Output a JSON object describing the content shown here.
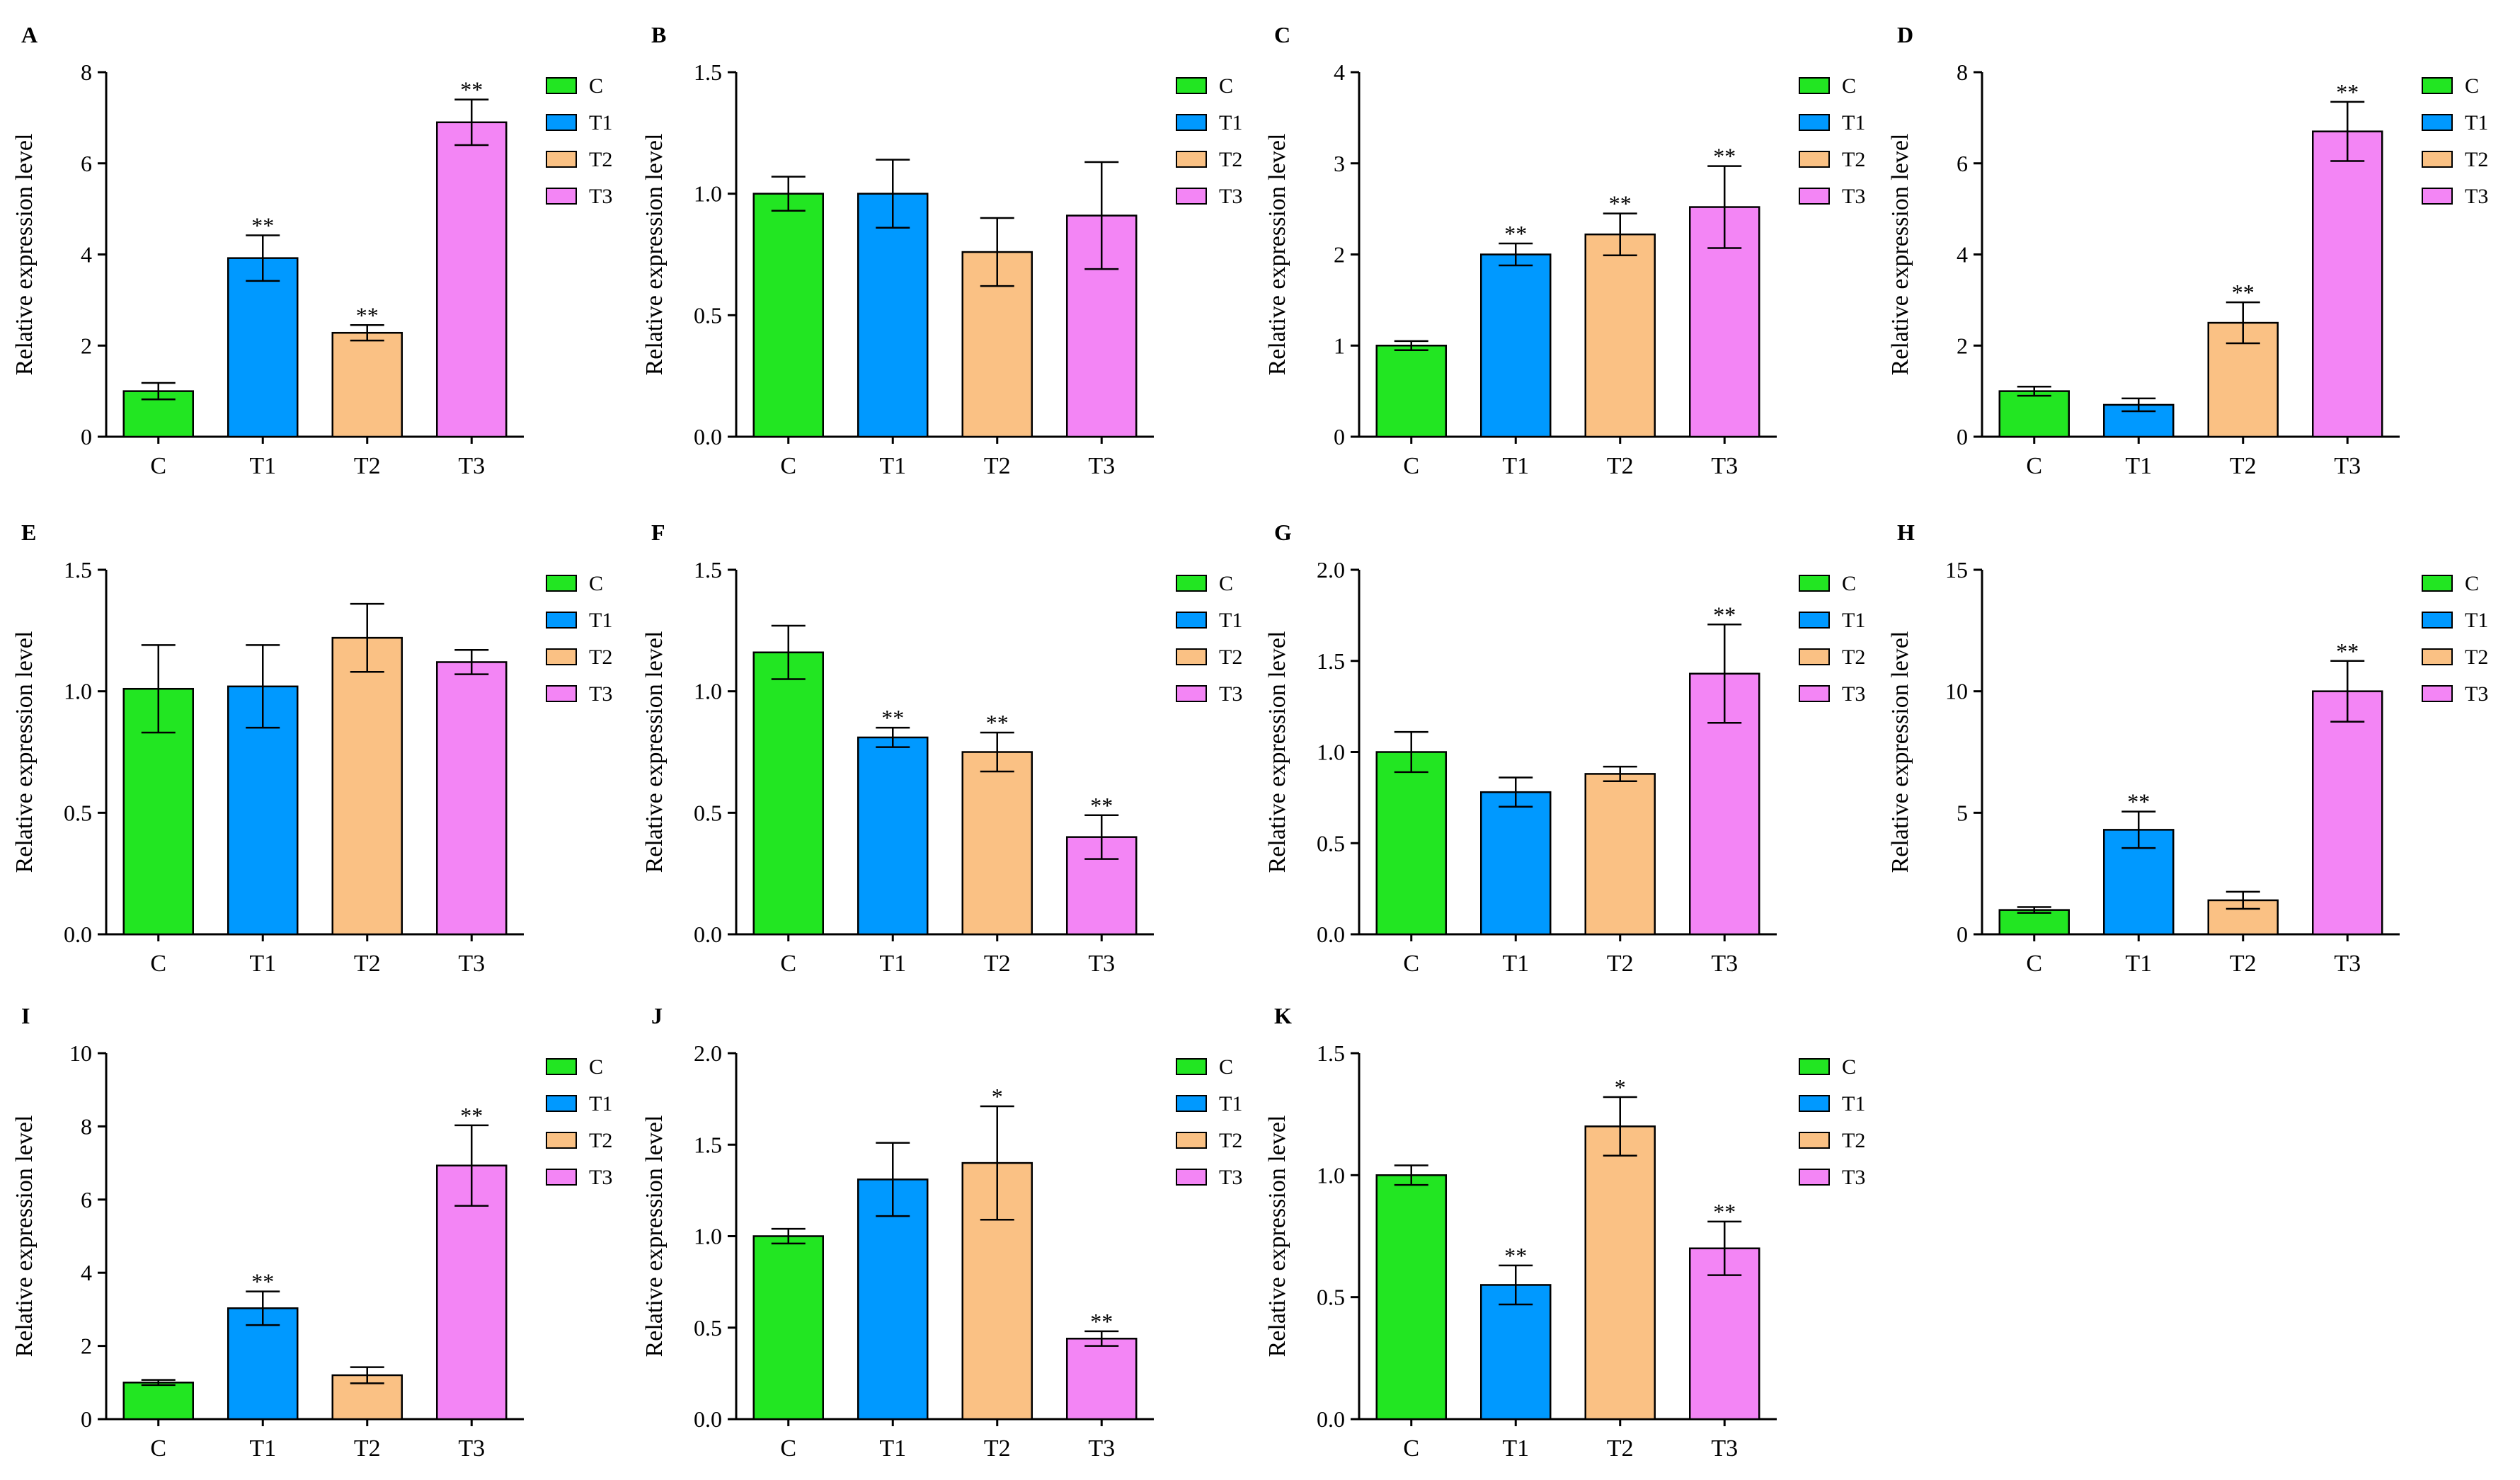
{
  "chart_data": [
    {
      "panel": "A",
      "type": "bar",
      "categories": [
        "C",
        "T1",
        "T2",
        "T3"
      ],
      "values": [
        1.0,
        3.92,
        2.28,
        6.9
      ],
      "errors": [
        0.18,
        0.5,
        0.17,
        0.5
      ],
      "significance": [
        "",
        "**",
        "**",
        "**"
      ],
      "ylabel": "Relative expression level",
      "ylim": [
        0,
        8
      ],
      "yticks": [
        "0",
        "2",
        "4",
        "6",
        "8"
      ],
      "legend": [
        "C",
        "T1",
        "T2",
        "T3"
      ]
    },
    {
      "panel": "B",
      "type": "bar",
      "categories": [
        "C",
        "T1",
        "T2",
        "T3"
      ],
      "values": [
        1.0,
        1.0,
        0.76,
        0.91
      ],
      "errors": [
        0.07,
        0.14,
        0.14,
        0.22
      ],
      "significance": [
        "",
        "",
        "",
        ""
      ],
      "ylabel": "Relative expression level",
      "ylim": [
        0,
        1.5
      ],
      "yticks": [
        "0.0",
        "0.5",
        "1.0",
        "1.5"
      ],
      "legend": [
        "C",
        "T1",
        "T2",
        "T3"
      ]
    },
    {
      "panel": "C",
      "type": "bar",
      "categories": [
        "C",
        "T1",
        "T2",
        "T3"
      ],
      "values": [
        1.0,
        2.0,
        2.22,
        2.52
      ],
      "errors": [
        0.05,
        0.12,
        0.23,
        0.45
      ],
      "significance": [
        "",
        "**",
        "**",
        "**"
      ],
      "ylabel": "Relative expression level",
      "ylim": [
        0,
        4
      ],
      "yticks": [
        "0",
        "1",
        "2",
        "3",
        "4"
      ],
      "legend": [
        "C",
        "T1",
        "T2",
        "T3"
      ]
    },
    {
      "panel": "D",
      "type": "bar",
      "categories": [
        "C",
        "T1",
        "T2",
        "T3"
      ],
      "values": [
        1.0,
        0.7,
        2.5,
        6.7
      ],
      "errors": [
        0.1,
        0.14,
        0.45,
        0.65
      ],
      "significance": [
        "",
        "",
        "**",
        "**"
      ],
      "ylabel": "Relative expression level",
      "ylim": [
        0,
        8
      ],
      "yticks": [
        "0",
        "2",
        "4",
        "6",
        "8"
      ],
      "legend": [
        "C",
        "T1",
        "T2",
        "T3"
      ]
    },
    {
      "panel": "E",
      "type": "bar",
      "categories": [
        "C",
        "T1",
        "T2",
        "T3"
      ],
      "values": [
        1.01,
        1.02,
        1.22,
        1.12
      ],
      "errors": [
        0.18,
        0.17,
        0.14,
        0.05
      ],
      "significance": [
        "",
        "",
        "",
        ""
      ],
      "ylabel": "Relative expression level",
      "ylim": [
        0,
        1.5
      ],
      "yticks": [
        "0.0",
        "0.5",
        "1.0",
        "1.5"
      ],
      "legend": [
        "C",
        "T1",
        "T2",
        "T3"
      ]
    },
    {
      "panel": "F",
      "type": "bar",
      "categories": [
        "C",
        "T1",
        "T2",
        "T3"
      ],
      "values": [
        1.16,
        0.81,
        0.75,
        0.4
      ],
      "errors": [
        0.11,
        0.04,
        0.08,
        0.09
      ],
      "significance": [
        "",
        "**",
        "**",
        "**"
      ],
      "ylabel": "Relative expression level",
      "ylim": [
        0,
        1.5
      ],
      "yticks": [
        "0.0",
        "0.5",
        "1.0",
        "1.5"
      ],
      "legend": [
        "C",
        "T1",
        "T2",
        "T3"
      ]
    },
    {
      "panel": "G",
      "type": "bar",
      "categories": [
        "C",
        "T1",
        "T2",
        "T3"
      ],
      "values": [
        1.0,
        0.78,
        0.88,
        1.43
      ],
      "errors": [
        0.11,
        0.08,
        0.04,
        0.27
      ],
      "significance": [
        "",
        "",
        "",
        "**"
      ],
      "ylabel": "Relative expression level",
      "ylim": [
        0,
        2.0
      ],
      "yticks": [
        "0.0",
        "0.5",
        "1.0",
        "1.5",
        "2.0"
      ],
      "legend": [
        "C",
        "T1",
        "T2",
        "T3"
      ]
    },
    {
      "panel": "H",
      "type": "bar",
      "categories": [
        "C",
        "T1",
        "T2",
        "T3"
      ],
      "values": [
        1.0,
        4.3,
        1.4,
        10.0
      ],
      "errors": [
        0.12,
        0.75,
        0.35,
        1.25
      ],
      "significance": [
        "",
        "**",
        "",
        "**"
      ],
      "ylabel": "Relative expression level",
      "ylim": [
        0,
        15
      ],
      "yticks": [
        "0",
        "5",
        "10",
        "15"
      ],
      "legend": [
        "C",
        "T1",
        "T2",
        "T3"
      ]
    },
    {
      "panel": "I",
      "type": "bar",
      "categories": [
        "C",
        "T1",
        "T2",
        "T3"
      ],
      "values": [
        1.0,
        3.03,
        1.2,
        6.93
      ],
      "errors": [
        0.07,
        0.46,
        0.22,
        1.1
      ],
      "significance": [
        "",
        "**",
        "",
        "**"
      ],
      "ylabel": "Relative expression level",
      "ylim": [
        0,
        10
      ],
      "yticks": [
        "0",
        "2",
        "4",
        "6",
        "8",
        "10"
      ],
      "legend": [
        "C",
        "T1",
        "T2",
        "T3"
      ]
    },
    {
      "panel": "J",
      "type": "bar",
      "categories": [
        "C",
        "T1",
        "T2",
        "T3"
      ],
      "values": [
        1.0,
        1.31,
        1.4,
        0.44
      ],
      "errors": [
        0.04,
        0.2,
        0.31,
        0.04
      ],
      "significance": [
        "",
        "",
        "*",
        "**"
      ],
      "ylabel": "Relative expression level",
      "ylim": [
        0,
        2.0
      ],
      "yticks": [
        "0.0",
        "0.5",
        "1.0",
        "1.5",
        "2.0"
      ],
      "legend": [
        "C",
        "T1",
        "T2",
        "T3"
      ]
    },
    {
      "panel": "K",
      "type": "bar",
      "categories": [
        "C",
        "T1",
        "T2",
        "T3"
      ],
      "values": [
        1.0,
        0.55,
        1.2,
        0.7
      ],
      "errors": [
        0.04,
        0.08,
        0.12,
        0.11
      ],
      "significance": [
        "",
        "**",
        "*",
        "**"
      ],
      "ylabel": "Relative expression level",
      "ylim": [
        0,
        1.5
      ],
      "yticks": [
        "0.0",
        "0.5",
        "1.0",
        "1.5"
      ],
      "legend": [
        "C",
        "T1",
        "T2",
        "T3"
      ]
    }
  ],
  "colors": {
    "C": "#22e622",
    "T1": "#0099ff",
    "T2": "#fac184",
    "T3": "#f385f5",
    "axis": "#000000"
  }
}
